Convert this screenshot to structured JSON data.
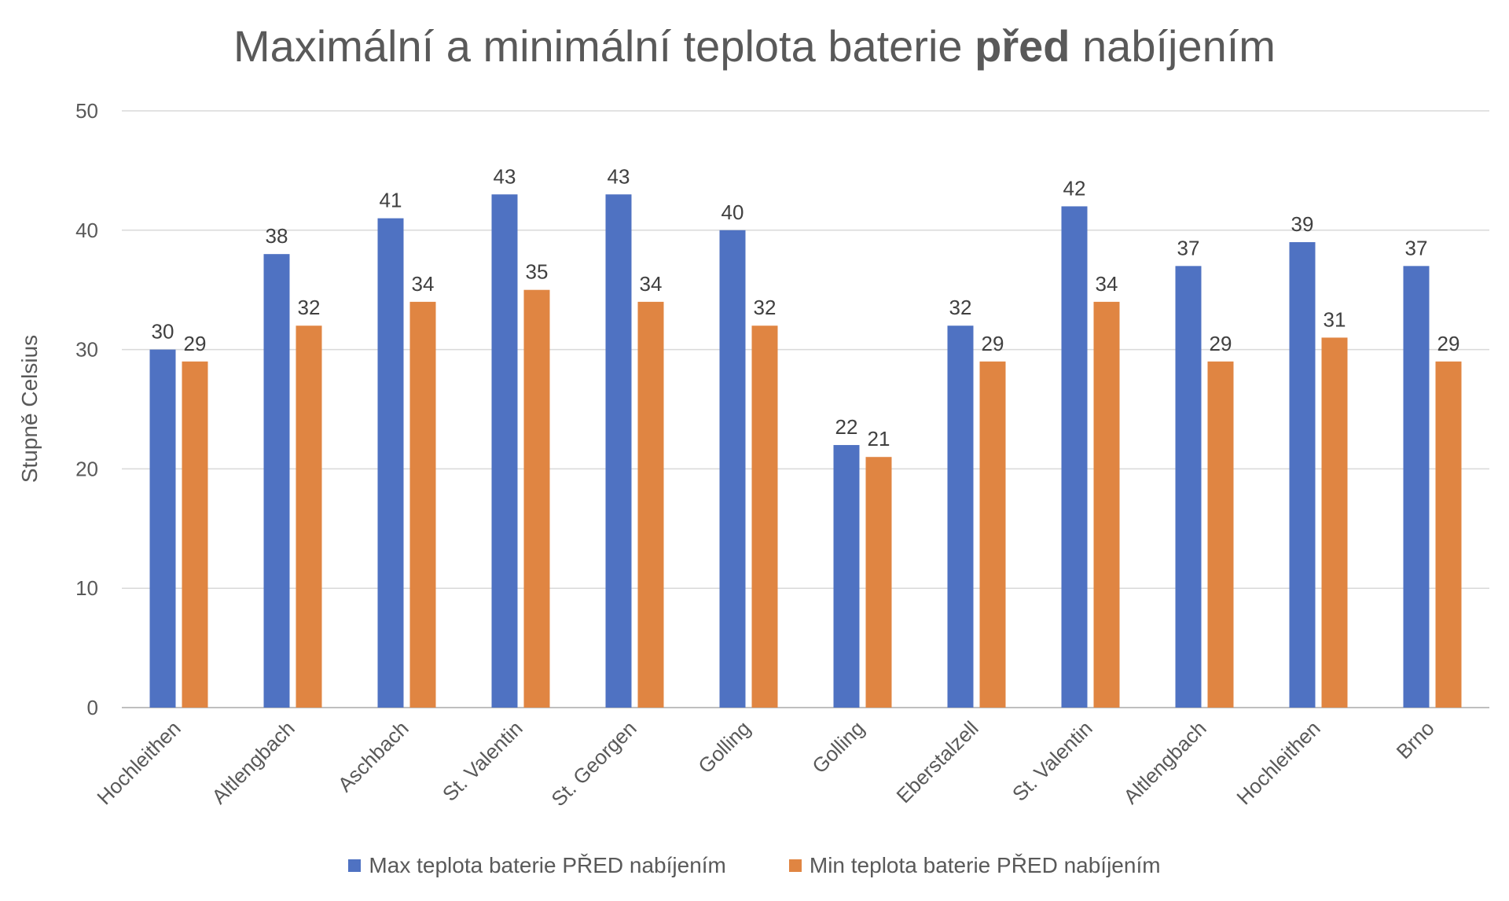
{
  "chart_data": {
    "type": "bar",
    "title_parts": [
      "Maximální a minimální teplota baterie ",
      "před",
      " nabíjením"
    ],
    "ylabel": "Stupně Celsius",
    "xlabel": "",
    "ylim": [
      0,
      50
    ],
    "yticks": [
      0,
      10,
      20,
      30,
      40,
      50
    ],
    "grid": true,
    "legend_position": "bottom",
    "categories": [
      "Hochleithen",
      "Altlengbach",
      "Aschbach",
      "St. Valentin",
      "St. Georgen",
      "Golling",
      "Golling",
      "Eberstalzell",
      "St. Valentin",
      "Altlengbach",
      "Hochleithen",
      "Brno"
    ],
    "series": [
      {
        "name": "Max teplota baterie PŘED nabíjením",
        "color": "#4F72C2",
        "values": [
          30,
          38,
          41,
          43,
          43,
          40,
          22,
          32,
          42,
          37,
          39,
          37
        ]
      },
      {
        "name": "Min teplota baterie PŘED nabíjením",
        "color": "#E08542",
        "values": [
          29,
          32,
          34,
          35,
          34,
          32,
          21,
          29,
          34,
          29,
          31,
          29
        ]
      }
    ]
  }
}
